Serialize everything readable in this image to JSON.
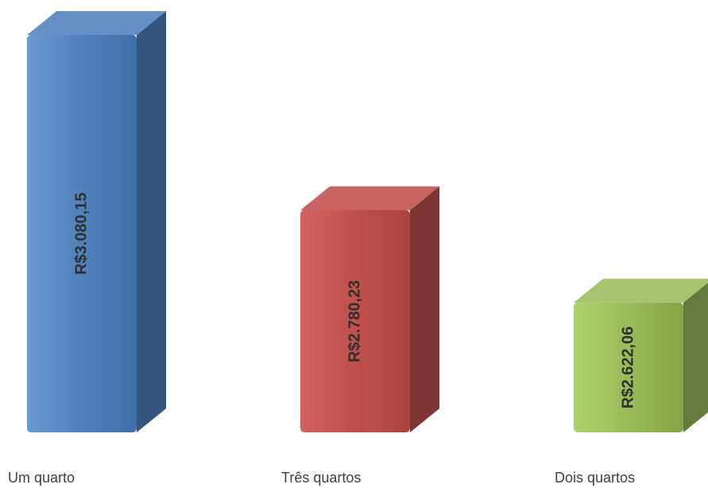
{
  "chart_data": {
    "type": "bar",
    "style": "3d-column",
    "categories": [
      "Um quarto",
      "Três quartos",
      "Dois quartos"
    ],
    "values": [
      3080.15,
      2780.23,
      2622.06
    ],
    "value_labels": [
      "R$3.080,15",
      "R$2.780,23",
      "R$2.622,06"
    ],
    "colors": [
      "#4f81bd",
      "#c0504d",
      "#9bbb59"
    ],
    "title": "",
    "xlabel": "",
    "ylabel": "",
    "grid": false,
    "legend": "none"
  }
}
